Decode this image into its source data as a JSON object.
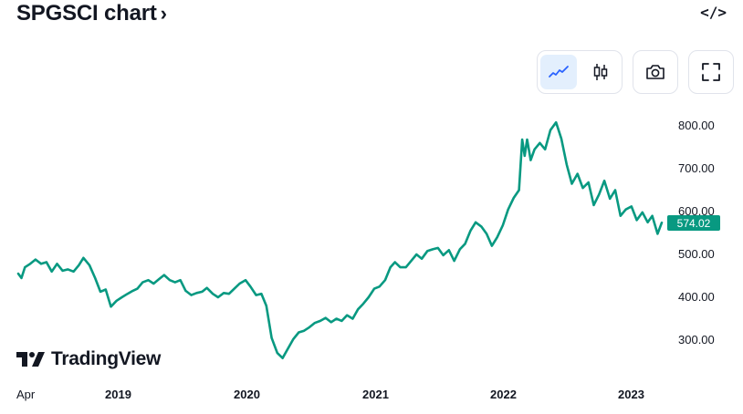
{
  "header": {
    "title": "SPGSCI chart",
    "chevron": "›",
    "embed_icon": "</>"
  },
  "toolbar": {
    "line_icon": "line-chart-icon",
    "candle_icon": "candlestick-icon",
    "camera_icon": "camera-icon",
    "fullscreen_icon": "fullscreen-icon"
  },
  "branding": {
    "name": "TradingView"
  },
  "price_badge": "574.02",
  "colors": {
    "line": "#089981",
    "badge": "#089981",
    "active_bg": "#e3effd",
    "icon_active": "#2962ff"
  },
  "chart_data": {
    "type": "line",
    "title": "",
    "y_ticks": [
      "800.00",
      "700.00",
      "600.00",
      "500.00",
      "400.00",
      "300.00"
    ],
    "x_ticks": [
      "Apr",
      "2019",
      "2020",
      "2021",
      "2022",
      "2023"
    ],
    "ylim": [
      230,
      830
    ],
    "last_value": 574.02,
    "series": [
      {
        "values": [
          [
            "2018-04-01",
            455
          ],
          [
            "2018-04-10",
            445
          ],
          [
            "2018-04-20",
            470
          ],
          [
            "2018-05-05",
            478
          ],
          [
            "2018-05-20",
            488
          ],
          [
            "2018-06-05",
            478
          ],
          [
            "2018-06-20",
            482
          ],
          [
            "2018-07-05",
            460
          ],
          [
            "2018-07-20",
            478
          ],
          [
            "2018-08-05",
            462
          ],
          [
            "2018-08-20",
            465
          ],
          [
            "2018-09-05",
            460
          ],
          [
            "2018-09-20",
            475
          ],
          [
            "2018-10-03",
            492
          ],
          [
            "2018-10-20",
            475
          ],
          [
            "2018-11-05",
            445
          ],
          [
            "2018-11-20",
            413
          ],
          [
            "2018-12-05",
            418
          ],
          [
            "2018-12-20",
            378
          ],
          [
            "2019-01-05",
            392
          ],
          [
            "2019-01-20",
            400
          ],
          [
            "2019-02-05",
            408
          ],
          [
            "2019-02-20",
            415
          ],
          [
            "2019-03-05",
            420
          ],
          [
            "2019-03-20",
            435
          ],
          [
            "2019-04-05",
            440
          ],
          [
            "2019-04-20",
            432
          ],
          [
            "2019-05-05",
            442
          ],
          [
            "2019-05-20",
            452
          ],
          [
            "2019-06-05",
            440
          ],
          [
            "2019-06-20",
            435
          ],
          [
            "2019-07-05",
            440
          ],
          [
            "2019-07-20",
            415
          ],
          [
            "2019-08-05",
            405
          ],
          [
            "2019-08-20",
            410
          ],
          [
            "2019-09-05",
            413
          ],
          [
            "2019-09-18",
            422
          ],
          [
            "2019-10-05",
            408
          ],
          [
            "2019-10-20",
            400
          ],
          [
            "2019-11-05",
            410
          ],
          [
            "2019-11-20",
            408
          ],
          [
            "2019-12-05",
            420
          ],
          [
            "2019-12-20",
            432
          ],
          [
            "2020-01-06",
            440
          ],
          [
            "2020-01-20",
            425
          ],
          [
            "2020-02-05",
            405
          ],
          [
            "2020-02-20",
            408
          ],
          [
            "2020-03-05",
            380
          ],
          [
            "2020-03-20",
            305
          ],
          [
            "2020-04-05",
            270
          ],
          [
            "2020-04-20",
            258
          ],
          [
            "2020-05-05",
            280
          ],
          [
            "2020-05-20",
            302
          ],
          [
            "2020-06-05",
            318
          ],
          [
            "2020-06-20",
            322
          ],
          [
            "2020-07-05",
            330
          ],
          [
            "2020-07-20",
            340
          ],
          [
            "2020-08-05",
            345
          ],
          [
            "2020-08-20",
            352
          ],
          [
            "2020-09-05",
            342
          ],
          [
            "2020-09-20",
            350
          ],
          [
            "2020-10-05",
            345
          ],
          [
            "2020-10-20",
            358
          ],
          [
            "2020-11-05",
            350
          ],
          [
            "2020-11-20",
            372
          ],
          [
            "2020-12-05",
            385
          ],
          [
            "2020-12-20",
            400
          ],
          [
            "2021-01-05",
            420
          ],
          [
            "2021-01-20",
            425
          ],
          [
            "2021-02-05",
            440
          ],
          [
            "2021-02-20",
            470
          ],
          [
            "2021-03-05",
            482
          ],
          [
            "2021-03-20",
            470
          ],
          [
            "2021-04-05",
            470
          ],
          [
            "2021-04-20",
            485
          ],
          [
            "2021-05-05",
            500
          ],
          [
            "2021-05-20",
            490
          ],
          [
            "2021-06-05",
            508
          ],
          [
            "2021-06-20",
            512
          ],
          [
            "2021-07-05",
            515
          ],
          [
            "2021-07-20",
            498
          ],
          [
            "2021-08-05",
            510
          ],
          [
            "2021-08-20",
            485
          ],
          [
            "2021-09-05",
            512
          ],
          [
            "2021-09-20",
            525
          ],
          [
            "2021-10-05",
            555
          ],
          [
            "2021-10-20",
            575
          ],
          [
            "2021-11-05",
            565
          ],
          [
            "2021-11-20",
            548
          ],
          [
            "2021-12-05",
            520
          ],
          [
            "2021-12-20",
            540
          ],
          [
            "2022-01-05",
            568
          ],
          [
            "2022-01-20",
            605
          ],
          [
            "2022-02-05",
            632
          ],
          [
            "2022-02-20",
            650
          ],
          [
            "2022-03-01",
            768
          ],
          [
            "2022-03-08",
            730
          ],
          [
            "2022-03-15",
            768
          ],
          [
            "2022-03-25",
            720
          ],
          [
            "2022-04-05",
            745
          ],
          [
            "2022-04-20",
            760
          ],
          [
            "2022-05-05",
            745
          ],
          [
            "2022-05-20",
            790
          ],
          [
            "2022-06-05",
            808
          ],
          [
            "2022-06-20",
            770
          ],
          [
            "2022-07-05",
            710
          ],
          [
            "2022-07-20",
            665
          ],
          [
            "2022-08-05",
            688
          ],
          [
            "2022-08-20",
            655
          ],
          [
            "2022-09-05",
            668
          ],
          [
            "2022-09-20",
            615
          ],
          [
            "2022-10-05",
            640
          ],
          [
            "2022-10-20",
            672
          ],
          [
            "2022-11-05",
            630
          ],
          [
            "2022-11-20",
            650
          ],
          [
            "2022-12-05",
            590
          ],
          [
            "2022-12-20",
            605
          ],
          [
            "2023-01-05",
            612
          ],
          [
            "2023-01-20",
            580
          ],
          [
            "2023-02-05",
            598
          ],
          [
            "2023-02-20",
            575
          ],
          [
            "2023-03-05",
            590
          ],
          [
            "2023-03-20",
            548
          ],
          [
            "2023-04-01",
            574.02
          ]
        ]
      }
    ]
  }
}
